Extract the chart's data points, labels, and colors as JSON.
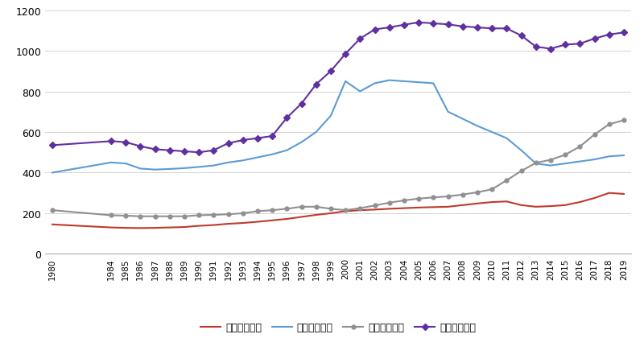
{
  "years": [
    1980,
    1984,
    1985,
    1986,
    1987,
    1988,
    1989,
    1990,
    1991,
    1992,
    1993,
    1994,
    1995,
    1996,
    1997,
    1998,
    1999,
    2000,
    2001,
    2002,
    2003,
    2004,
    2005,
    2006,
    2007,
    2008,
    2009,
    2010,
    2011,
    2012,
    2013,
    2014,
    2015,
    2016,
    2017,
    2018,
    2019
  ],
  "rural_primary": [
    145,
    130,
    128,
    127,
    128,
    130,
    132,
    138,
    142,
    148,
    152,
    158,
    165,
    172,
    182,
    192,
    200,
    210,
    215,
    218,
    222,
    225,
    228,
    230,
    232,
    240,
    248,
    255,
    258,
    240,
    232,
    235,
    240,
    255,
    275,
    300,
    295
  ],
  "rural_middle": [
    400,
    450,
    445,
    420,
    415,
    418,
    422,
    428,
    435,
    450,
    460,
    475,
    490,
    510,
    550,
    600,
    680,
    850,
    800,
    840,
    855,
    850,
    845,
    840,
    700,
    665,
    630,
    600,
    570,
    510,
    445,
    435,
    445,
    455,
    465,
    480,
    485
  ],
  "urban_primary": [
    215,
    190,
    188,
    185,
    185,
    185,
    185,
    190,
    192,
    195,
    200,
    210,
    215,
    222,
    232,
    232,
    222,
    215,
    225,
    238,
    252,
    263,
    272,
    278,
    283,
    292,
    303,
    318,
    362,
    408,
    448,
    463,
    488,
    528,
    588,
    638,
    658
  ],
  "urban_middle": [
    535,
    555,
    550,
    530,
    515,
    510,
    505,
    500,
    510,
    545,
    560,
    570,
    580,
    670,
    740,
    835,
    900,
    985,
    1060,
    1105,
    1115,
    1128,
    1140,
    1135,
    1130,
    1120,
    1115,
    1110,
    1110,
    1075,
    1020,
    1010,
    1030,
    1035,
    1060,
    1080,
    1090
  ],
  "rural_primary_color": "#c0392b",
  "rural_middle_color": "#5b9bd5",
  "urban_primary_color": "#909090",
  "urban_middle_color": "#6030a0",
  "legend_labels": [
    "农村小学规模",
    "农村中学规模",
    "城市小学规模",
    "城市中学规模"
  ],
  "ylim": [
    0,
    1200
  ],
  "yticks": [
    0,
    200,
    400,
    600,
    800,
    1000,
    1200
  ],
  "figsize": [
    8.0,
    4.52
  ],
  "dpi": 100
}
